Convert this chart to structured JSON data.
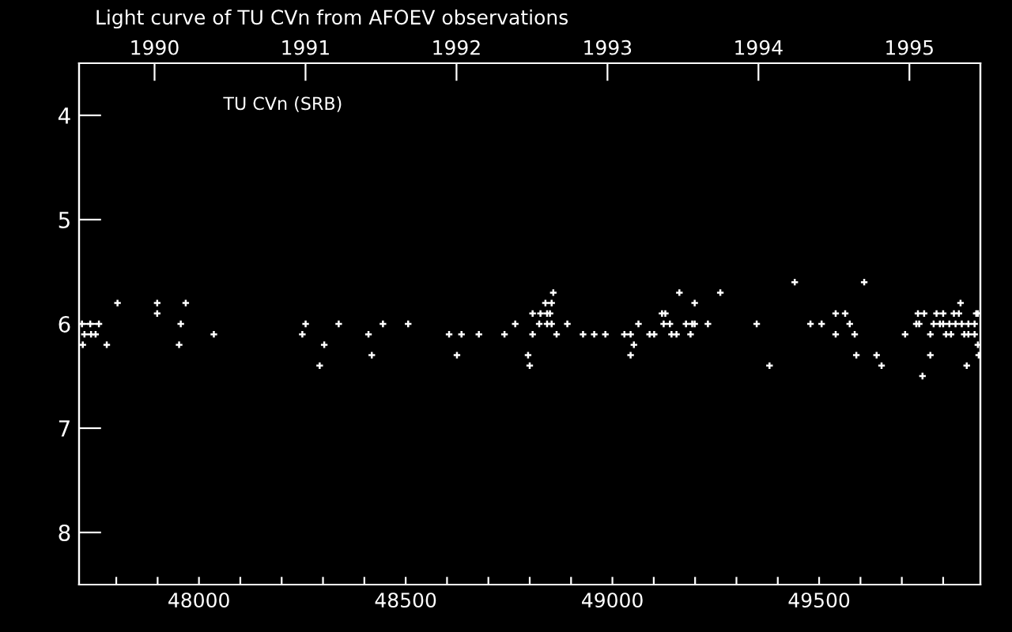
{
  "chart_data": {
    "type": "scatter",
    "title": "Light curve of TU CVn from AFOEV observations",
    "annotations": [
      "TU CVn (SRB)"
    ],
    "x": [
      47803,
      47899,
      47968,
      47899,
      47717,
      47737,
      47758,
      47956,
      48258,
      48338,
      47723,
      47739,
      47750,
      48036,
      48250,
      48410,
      47719,
      47777,
      47952,
      48303,
      48292,
      48418,
      48445,
      48506,
      48605,
      48635,
      48677,
      48739,
      48765,
      48807,
      48796,
      48800,
      48624,
      48807,
      48823,
      48826,
      48842,
      48849,
      48838,
      48853,
      48857,
      48842,
      48853,
      48865,
      48891,
      48929,
      48956,
      48983,
      49029,
      49044,
      49052,
      49044,
      49063,
      49090,
      49101,
      49120,
      49128,
      49124,
      49139,
      49143,
      49155,
      49162,
      49178,
      49189,
      49193,
      49199,
      49199,
      49231,
      49261,
      49349,
      49380,
      49441,
      49479,
      49506,
      49540,
      49563,
      49540,
      49574,
      49586,
      49590,
      49609,
      49639,
      49651,
      49708,
      49735,
      49742,
      49750,
      49739,
      49754,
      49769,
      49769,
      49784,
      49800,
      49777,
      49792,
      49800,
      49807,
      49819,
      49826,
      49838,
      49815,
      49830,
      49845,
      49861,
      49876,
      49842,
      49851,
      49861,
      49876,
      49857,
      49880,
      49884,
      49884,
      49886
    ],
    "values": [
      5.8,
      5.8,
      5.8,
      5.9,
      6.0,
      6.0,
      6.0,
      6.0,
      6.0,
      6.0,
      6.1,
      6.1,
      6.1,
      6.1,
      6.1,
      6.1,
      6.2,
      6.2,
      6.2,
      6.2,
      6.4,
      6.3,
      6.0,
      6.0,
      6.1,
      6.1,
      6.1,
      6.1,
      6.0,
      6.1,
      6.3,
      6.4,
      6.3,
      5.9,
      6.0,
      5.9,
      5.9,
      5.9,
      5.8,
      5.8,
      5.7,
      6.0,
      6.0,
      6.1,
      6.0,
      6.1,
      6.1,
      6.1,
      6.1,
      6.1,
      6.2,
      6.3,
      6.0,
      6.1,
      6.1,
      5.9,
      5.9,
      6.0,
      6.0,
      6.1,
      6.1,
      5.7,
      6.0,
      6.1,
      6.0,
      5.8,
      6.0,
      6.0,
      5.7,
      6.0,
      6.4,
      5.6,
      6.0,
      6.0,
      5.9,
      5.9,
      6.1,
      6.0,
      6.1,
      6.3,
      5.6,
      6.3,
      6.4,
      6.1,
      6.0,
      6.0,
      6.5,
      5.9,
      5.9,
      6.1,
      6.3,
      5.9,
      5.9,
      6.0,
      6.0,
      6.0,
      6.1,
      6.1,
      5.9,
      5.9,
      6.0,
      6.0,
      6.0,
      6.0,
      6.0,
      5.8,
      6.1,
      6.1,
      6.1,
      6.4,
      5.9,
      5.9,
      6.2,
      6.3
    ],
    "color": "#ffffff",
    "marker": "cross",
    "xlim": [
      47710,
      49890
    ],
    "xticks": [
      {
        "value": 47800,
        "label": null
      },
      {
        "value": 47900,
        "label": null
      },
      48000,
      {
        "value": 48100,
        "label": null
      },
      {
        "value": 48200,
        "label": null
      },
      {
        "value": 48300,
        "label": null
      },
      {
        "value": 48400,
        "label": null
      },
      48500,
      {
        "value": 48600,
        "label": null
      },
      {
        "value": 48700,
        "label": null
      },
      {
        "value": 48800,
        "label": null
      },
      {
        "value": 48900,
        "label": null
      },
      49000,
      {
        "value": 49100,
        "label": null
      },
      {
        "value": 49200,
        "label": null
      },
      {
        "value": 49300,
        "label": null
      },
      {
        "value": 49400,
        "label": null
      },
      49500,
      {
        "value": 49600,
        "label": null
      },
      {
        "value": 49700,
        "label": null
      },
      {
        "value": 49800,
        "label": null
      }
    ],
    "x2lim": [
      1989.5,
      1995.47
    ],
    "x2ticks": [
      1990,
      1991,
      1992,
      1993,
      1994,
      1995
    ],
    "ylim": [
      8.5,
      3.5
    ],
    "yticks": [
      4,
      5,
      6,
      7,
      8
    ],
    "grid": false,
    "legend": false
  }
}
